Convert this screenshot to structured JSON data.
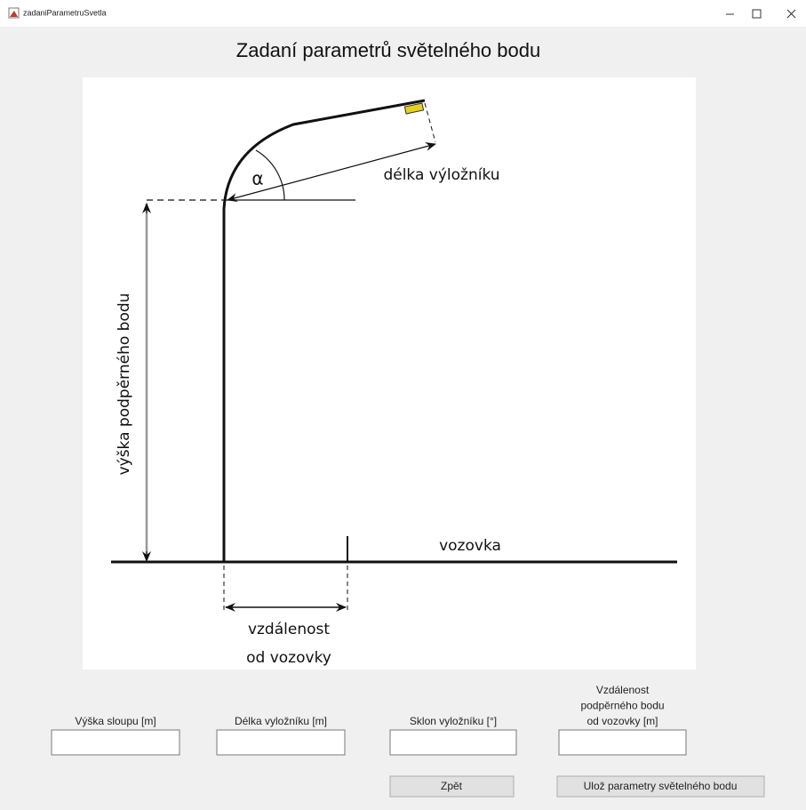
{
  "window": {
    "title": "zadaniParametruSvetla"
  },
  "heading": "Zadaní parametrů světelného bodu",
  "diagram": {
    "alpha": "α",
    "arm_length": "délka výložníku",
    "support_height": "výška podpěrného bodu",
    "road": "vozovka",
    "distance_line1": "vzdálenost",
    "distance_line2": "od vozovky"
  },
  "fields": [
    {
      "label": [
        "Výška sloupu [m]"
      ]
    },
    {
      "label": [
        "Délka vyložníku [m]"
      ]
    },
    {
      "label": [
        "Sklon vyložníku [°]"
      ]
    },
    {
      "label": [
        "Vzdálenost",
        "podpěrného bodu",
        "od vozovky [m]"
      ]
    }
  ],
  "buttons": {
    "back": "Zpět",
    "save": "Ulož parametry světelného bodu"
  }
}
